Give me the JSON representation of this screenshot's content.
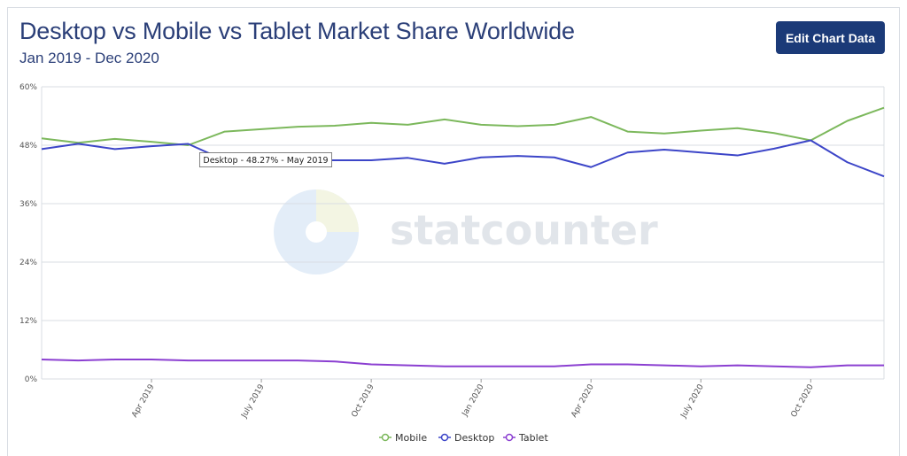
{
  "header": {
    "title": "Desktop vs Mobile vs Tablet Market Share Worldwide",
    "subtitle": "Jan 2019 - Dec 2020",
    "edit_button_label": "Edit Chart Data"
  },
  "watermark": {
    "text": "statcounter"
  },
  "tooltip": {
    "text": "Desktop - 48.27% - May 2019"
  },
  "colors": {
    "mobile": "#7cb85c",
    "desktop": "#3c45c8",
    "tablet": "#8b3fd1",
    "grid": "#d9dde3",
    "button": "#1b3a78",
    "title": "#2b3f78"
  },
  "chart_data": {
    "type": "line",
    "x": [
      "Jan 2019",
      "Feb 2019",
      "Mar 2019",
      "Apr 2019",
      "May 2019",
      "Jun 2019",
      "Jul 2019",
      "Aug 2019",
      "Sep 2019",
      "Oct 2019",
      "Nov 2019",
      "Dec 2019",
      "Jan 2020",
      "Feb 2020",
      "Mar 2020",
      "Apr 2020",
      "May 2020",
      "Jun 2020",
      "Jul 2020",
      "Aug 2020",
      "Sep 2020",
      "Oct 2020",
      "Nov 2020",
      "Dec 2020"
    ],
    "series": [
      {
        "name": "Mobile",
        "key": "mobile",
        "values": [
          49.4,
          48.5,
          49.3,
          48.7,
          48.0,
          50.8,
          51.3,
          51.8,
          52.0,
          52.6,
          52.2,
          53.3,
          52.2,
          51.9,
          52.2,
          53.8,
          50.8,
          50.4,
          51.0,
          51.5,
          50.5,
          49.0,
          53.0,
          55.7
        ]
      },
      {
        "name": "Desktop",
        "key": "desktop",
        "values": [
          47.2,
          48.3,
          47.2,
          47.8,
          48.27,
          44.9,
          44.9,
          44.9,
          44.9,
          44.9,
          45.4,
          44.2,
          45.5,
          45.8,
          45.5,
          43.5,
          46.5,
          47.1,
          46.5,
          45.9,
          47.3,
          49.0,
          44.5,
          41.6
        ]
      },
      {
        "name": "Tablet",
        "key": "tablet",
        "values": [
          4.0,
          3.8,
          4.0,
          4.0,
          3.8,
          3.8,
          3.8,
          3.8,
          3.6,
          3.0,
          2.8,
          2.6,
          2.6,
          2.6,
          2.6,
          3.0,
          3.0,
          2.8,
          2.6,
          2.8,
          2.6,
          2.4,
          2.8,
          2.8
        ]
      }
    ],
    "y_ticks": [
      "0%",
      "12%",
      "24%",
      "36%",
      "48%",
      "60%"
    ],
    "y_tick_values": [
      0,
      12,
      24,
      36,
      48,
      60
    ],
    "ylim": [
      0,
      60
    ],
    "x_tick_labels": [
      {
        "label": "Apr 2019",
        "index": 3
      },
      {
        "label": "July 2019",
        "index": 6
      },
      {
        "label": "Oct 2019",
        "index": 9
      },
      {
        "label": "Jan 2020",
        "index": 12
      },
      {
        "label": "Apr 2020",
        "index": 15
      },
      {
        "label": "July 2020",
        "index": 18
      },
      {
        "label": "Oct 2020",
        "index": 21
      }
    ],
    "grid": true,
    "legend_position": "bottom",
    "highlight": {
      "series": "desktop",
      "index": 4
    }
  }
}
